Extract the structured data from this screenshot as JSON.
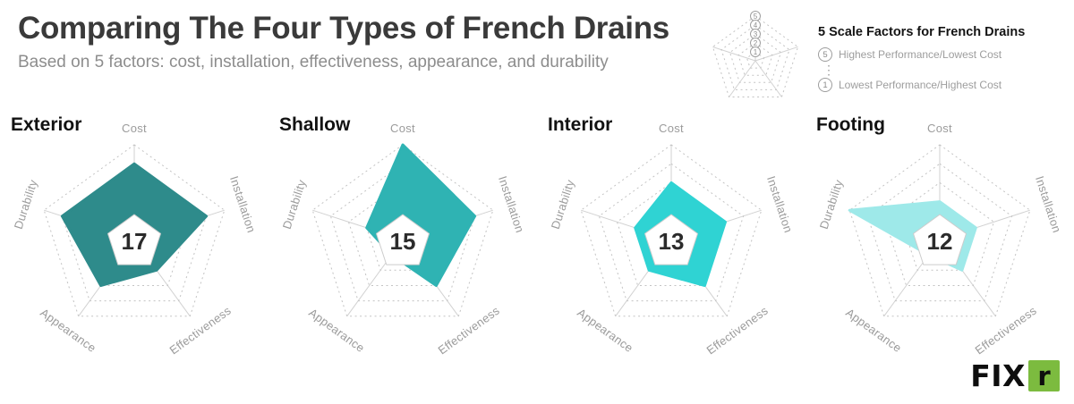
{
  "header": {
    "title": "Comparing The Four Types of French Drains",
    "subtitle": "Based on 5 factors: cost, installation, effectiveness, appearance, and durability"
  },
  "legend": {
    "title": "5 Scale Factors for French Drains",
    "high": {
      "value": "5",
      "label": "Highest Performance/Lowest Cost"
    },
    "low": {
      "value": "1",
      "label": "Lowest Performance/Highest Cost"
    },
    "ellipsis": "⋮",
    "scale_numbers": [
      "5",
      "4",
      "3",
      "2",
      "1"
    ]
  },
  "logo": {
    "text": "FIX",
    "accent_letter": "r",
    "accent_color": "#7CBB3F"
  },
  "colors": {
    "grid": "#c3c3c3",
    "spoke": "#d2d2d2",
    "axis_label": "#9b9b9b",
    "total": "#2b2b2b",
    "center_fill": "#ffffff",
    "center_stroke": "#cccccc"
  },
  "chart_data": {
    "type": "radar",
    "axes": [
      "Cost",
      "Installation",
      "Effectiveness",
      "Appearance",
      "Durability"
    ],
    "scale_min": 1,
    "scale_max": 5,
    "rings": 5,
    "charts": [
      {
        "name": "Exterior",
        "total": 17,
        "color": "#2E8B8B",
        "values": [
          4,
          4,
          2,
          3,
          4
        ]
      },
      {
        "name": "Shallow",
        "total": 15,
        "color": "#2FB3B3",
        "values": [
          5,
          4,
          3,
          1,
          2
        ]
      },
      {
        "name": "Interior",
        "total": 13,
        "color": "#2FD3D3",
        "values": [
          3,
          3,
          3,
          2,
          2
        ]
      },
      {
        "name": "Footing",
        "total": 12,
        "color": "#9EE9E9",
        "values": [
          2,
          2,
          2,
          1,
          5
        ]
      }
    ]
  }
}
